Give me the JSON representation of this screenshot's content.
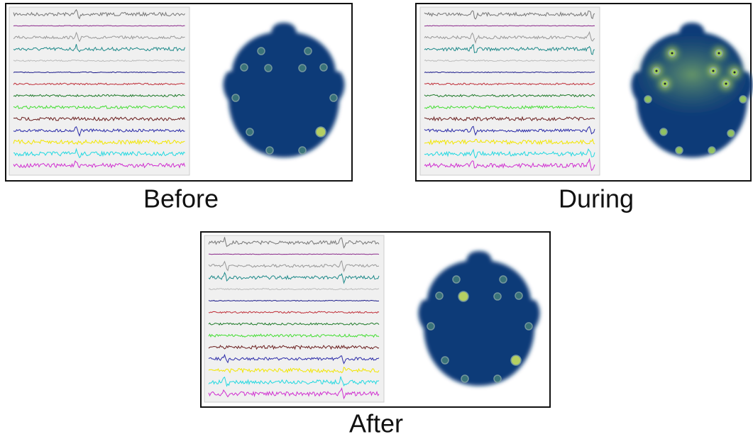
{
  "panels": [
    {
      "label": "Before"
    },
    {
      "label": "During"
    },
    {
      "label": "After"
    }
  ]
}
